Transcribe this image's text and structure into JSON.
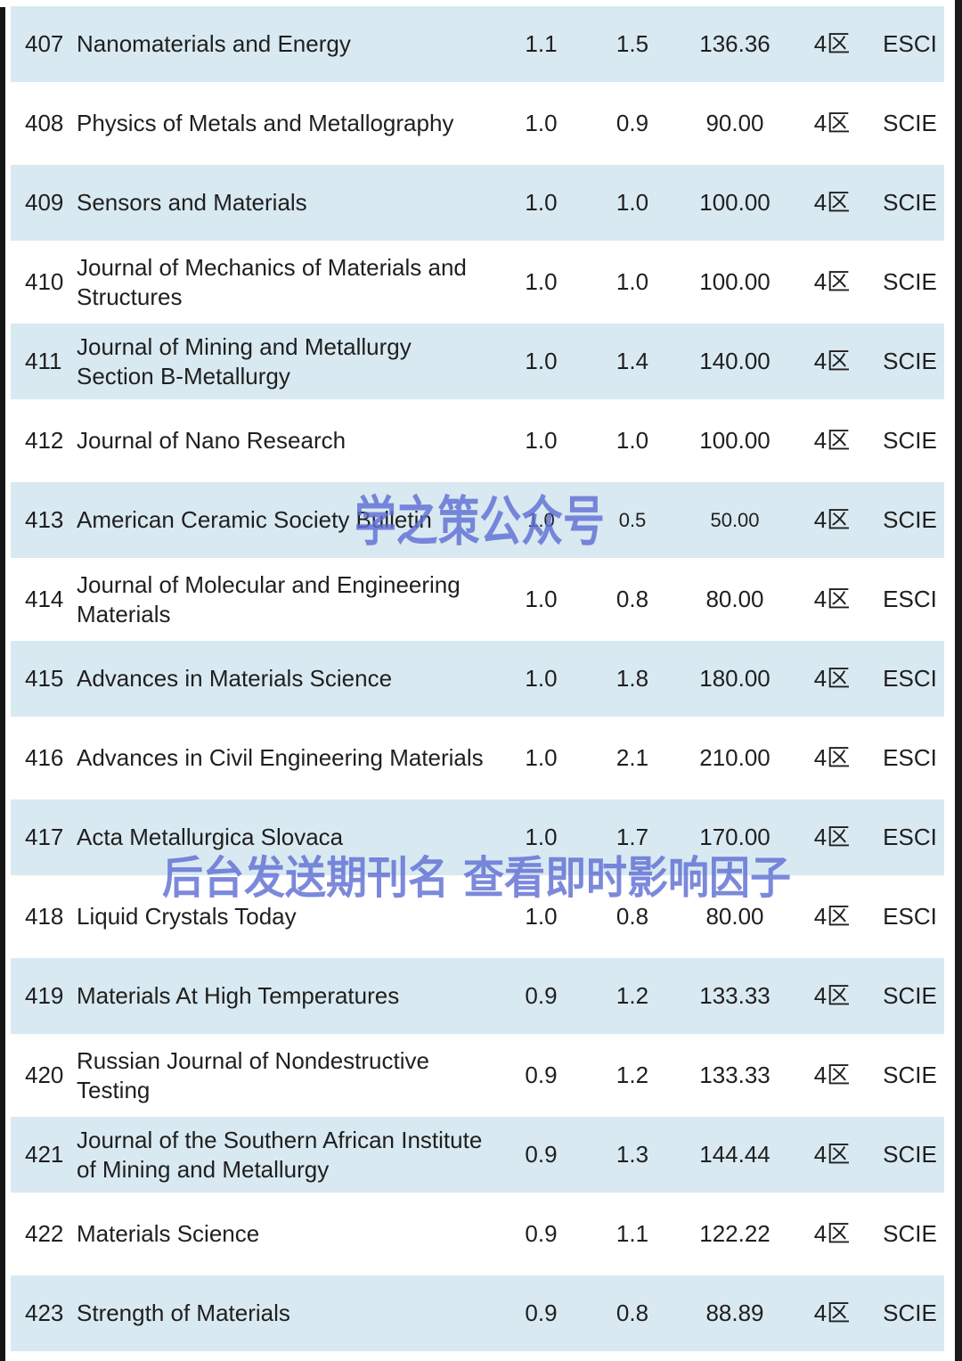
{
  "watermarks": {
    "center": "学之策公众号",
    "banner": "后台发送期刊名 查看即时影响因子"
  },
  "colors": {
    "row_shade": "#d9e9f1",
    "row_plain": "#ffffff",
    "text": "#1f1f1f",
    "watermark": "#5f6fd3",
    "edge_bar": "#151515"
  },
  "table": {
    "rows": [
      {
        "num": "407",
        "name": "Nanomaterials and Energy",
        "v1": "1.1",
        "v2": "1.5",
        "v3": "136.36",
        "zone": "4区",
        "index": "ESCI",
        "shaded": true
      },
      {
        "num": "408",
        "name": "Physics of Metals and Metallography",
        "v1": "1.0",
        "v2": "0.9",
        "v3": "90.00",
        "zone": "4区",
        "index": "SCIE",
        "shaded": false
      },
      {
        "num": "409",
        "name": "Sensors and Materials",
        "v1": "1.0",
        "v2": "1.0",
        "v3": "100.00",
        "zone": "4区",
        "index": "SCIE",
        "shaded": true
      },
      {
        "num": "410",
        "name": "Journal of Mechanics of Materials and\nStructures",
        "v1": "1.0",
        "v2": "1.0",
        "v3": "100.00",
        "zone": "4区",
        "index": "SCIE",
        "shaded": false
      },
      {
        "num": "411",
        "name": "Journal of Mining and Metallurgy\nSection B-Metallurgy",
        "v1": "1.0",
        "v2": "1.4",
        "v3": "140.00",
        "zone": "4区",
        "index": "SCIE",
        "shaded": true
      },
      {
        "num": "412",
        "name": "Journal of Nano Research",
        "v1": "1.0",
        "v2": "1.0",
        "v3": "100.00",
        "zone": "4区",
        "index": "SCIE",
        "shaded": false
      },
      {
        "num": "413",
        "name": "American Ceramic Society Bulletin",
        "v1": "1.0",
        "v2": "0.5",
        "v3": "50.00",
        "zone": "4区",
        "index": "SCIE",
        "shaded": true
      },
      {
        "num": "414",
        "name": "Journal of Molecular and Engineering\nMaterials",
        "v1": "1.0",
        "v2": "0.8",
        "v3": "80.00",
        "zone": "4区",
        "index": "ESCI",
        "shaded": false
      },
      {
        "num": "415",
        "name": "Advances in Materials Science",
        "v1": "1.0",
        "v2": "1.8",
        "v3": "180.00",
        "zone": "4区",
        "index": "ESCI",
        "shaded": true
      },
      {
        "num": "416",
        "name": "Advances in Civil Engineering Materials",
        "v1": "1.0",
        "v2": "2.1",
        "v3": "210.00",
        "zone": "4区",
        "index": "ESCI",
        "shaded": false
      },
      {
        "num": "417",
        "name": "Acta Metallurgica Slovaca",
        "v1": "1.0",
        "v2": "1.7",
        "v3": "170.00",
        "zone": "4区",
        "index": "ESCI",
        "shaded": true
      },
      {
        "num": "418",
        "name": "Liquid Crystals Today",
        "v1": "1.0",
        "v2": "0.8",
        "v3": "80.00",
        "zone": "4区",
        "index": "ESCI",
        "shaded": false
      },
      {
        "num": "419",
        "name": "Materials At High Temperatures",
        "v1": "0.9",
        "v2": "1.2",
        "v3": "133.33",
        "zone": "4区",
        "index": "SCIE",
        "shaded": true
      },
      {
        "num": "420",
        "name": "Russian Journal of Nondestructive\nTesting",
        "v1": "0.9",
        "v2": "1.2",
        "v3": "133.33",
        "zone": "4区",
        "index": "SCIE",
        "shaded": false
      },
      {
        "num": "421",
        "name": "Journal of the Southern African Institute\nof Mining and Metallurgy",
        "v1": "0.9",
        "v2": "1.3",
        "v3": "144.44",
        "zone": "4区",
        "index": "SCIE",
        "shaded": true
      },
      {
        "num": "422",
        "name": "Materials Science",
        "v1": "0.9",
        "v2": "1.1",
        "v3": "122.22",
        "zone": "4区",
        "index": "SCIE",
        "shaded": false
      },
      {
        "num": "423",
        "name": "Strength of Materials",
        "v1": "0.9",
        "v2": "0.8",
        "v3": "88.89",
        "zone": "4区",
        "index": "SCIE",
        "shaded": true
      }
    ]
  }
}
